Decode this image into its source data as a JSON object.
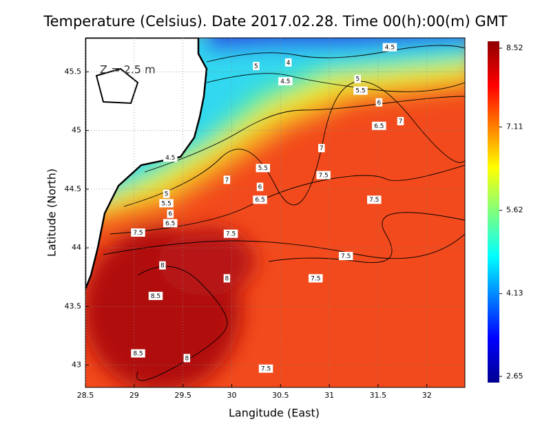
{
  "chart_data": {
    "type": "contour-map",
    "title": "Temperature (Celsius). Date 2017.02.28. Time 00(h):00(m) GMT",
    "x_label": "Langitude (East)",
    "y_label": "Latitude (North)",
    "annotation": "Z = 2.5 m",
    "xlim": [
      28.5,
      32.39
    ],
    "ylim": [
      42.81,
      45.79
    ],
    "xticks": [
      28.5,
      29,
      29.5,
      30,
      30.5,
      31,
      31.5,
      32
    ],
    "yticks": [
      43,
      43.5,
      44,
      44.5,
      45,
      45.5
    ],
    "grid": true,
    "colorbar": {
      "lim": [
        2.65,
        8.52
      ],
      "ticks": [
        2.65,
        4.13,
        5.62,
        7.11,
        8.52
      ]
    },
    "contour_labels": [
      {
        "value": 4.5,
        "x": 31.62,
        "y": 45.71
      },
      {
        "value": 4,
        "x": 30.58,
        "y": 45.58
      },
      {
        "value": 5,
        "x": 30.25,
        "y": 45.55
      },
      {
        "value": 4.5,
        "x": 30.55,
        "y": 45.42
      },
      {
        "value": 5,
        "x": 31.29,
        "y": 45.44
      },
      {
        "value": 5.5,
        "x": 31.32,
        "y": 45.34
      },
      {
        "value": 6,
        "x": 31.51,
        "y": 45.24
      },
      {
        "value": 6.5,
        "x": 31.51,
        "y": 45.04
      },
      {
        "value": 7,
        "x": 31.73,
        "y": 45.08
      },
      {
        "value": 7,
        "x": 30.92,
        "y": 44.85
      },
      {
        "value": 4.5,
        "x": 29.37,
        "y": 44.77
      },
      {
        "value": 5.5,
        "x": 30.32,
        "y": 44.68
      },
      {
        "value": 7.5,
        "x": 30.94,
        "y": 44.62
      },
      {
        "value": 7,
        "x": 29.95,
        "y": 44.58
      },
      {
        "value": 6,
        "x": 30.29,
        "y": 44.52
      },
      {
        "value": 5,
        "x": 29.33,
        "y": 44.46
      },
      {
        "value": 6.5,
        "x": 30.29,
        "y": 44.41
      },
      {
        "value": 5.5,
        "x": 29.33,
        "y": 44.38
      },
      {
        "value": 7.5,
        "x": 31.46,
        "y": 44.41
      },
      {
        "value": 6,
        "x": 29.37,
        "y": 44.29
      },
      {
        "value": 6.5,
        "x": 29.37,
        "y": 44.21
      },
      {
        "value": 7.5,
        "x": 29.04,
        "y": 44.13
      },
      {
        "value": 7.5,
        "x": 29.99,
        "y": 44.12
      },
      {
        "value": 7.5,
        "x": 31.17,
        "y": 43.93
      },
      {
        "value": 8,
        "x": 29.29,
        "y": 43.85
      },
      {
        "value": 8,
        "x": 29.95,
        "y": 43.74
      },
      {
        "value": 7.5,
        "x": 30.86,
        "y": 43.74
      },
      {
        "value": 8.5,
        "x": 29.22,
        "y": 43.59
      },
      {
        "value": 8.5,
        "x": 29.04,
        "y": 43.1
      },
      {
        "value": 8,
        "x": 29.54,
        "y": 43.06
      },
      {
        "value": 7.5,
        "x": 30.35,
        "y": 42.97
      }
    ]
  }
}
